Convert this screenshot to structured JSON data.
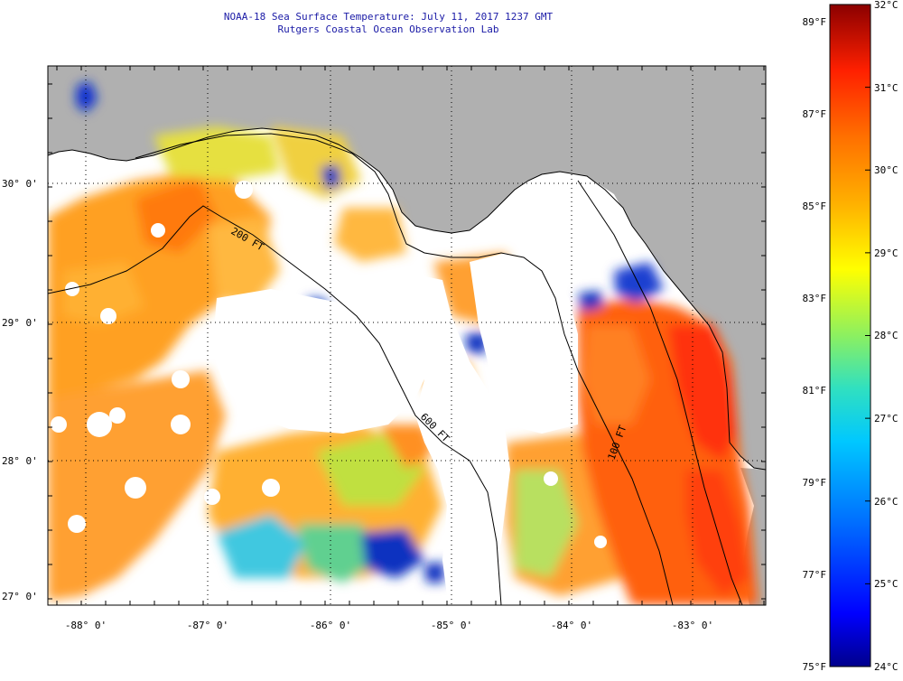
{
  "header": {
    "title": "NOAA-18 Sea Surface Temperature:  July 11, 2017 1237 GMT",
    "subtitle": "Rutgers Coastal Ocean Observation Lab"
  },
  "axes": {
    "lat_labels": [
      "30° 0'",
      "29° 0'",
      "28° 0'",
      "27° 0'"
    ],
    "lon_labels": [
      "-88° 0'",
      "-87° 0'",
      "-86° 0'",
      "-85° 0'",
      "-84° 0'",
      "-83° 0'"
    ]
  },
  "colorbar": {
    "celsius_labels": [
      "32°C",
      "31°C",
      "30°C",
      "29°C",
      "28°C",
      "27°C",
      "26°C",
      "25°C",
      "24°C"
    ],
    "fahrenheit_labels": [
      "89°F",
      "87°F",
      "85°F",
      "83°F",
      "81°F",
      "79°F",
      "77°F",
      "75°F"
    ],
    "min_c": 24,
    "max_c": 32
  },
  "contour_labels": [
    "200 FT",
    "600 FT",
    "100 FT"
  ],
  "colors": {
    "land": "#b0b0b0",
    "no_data": "#ffffff",
    "title_text": "#1a1aa6"
  }
}
